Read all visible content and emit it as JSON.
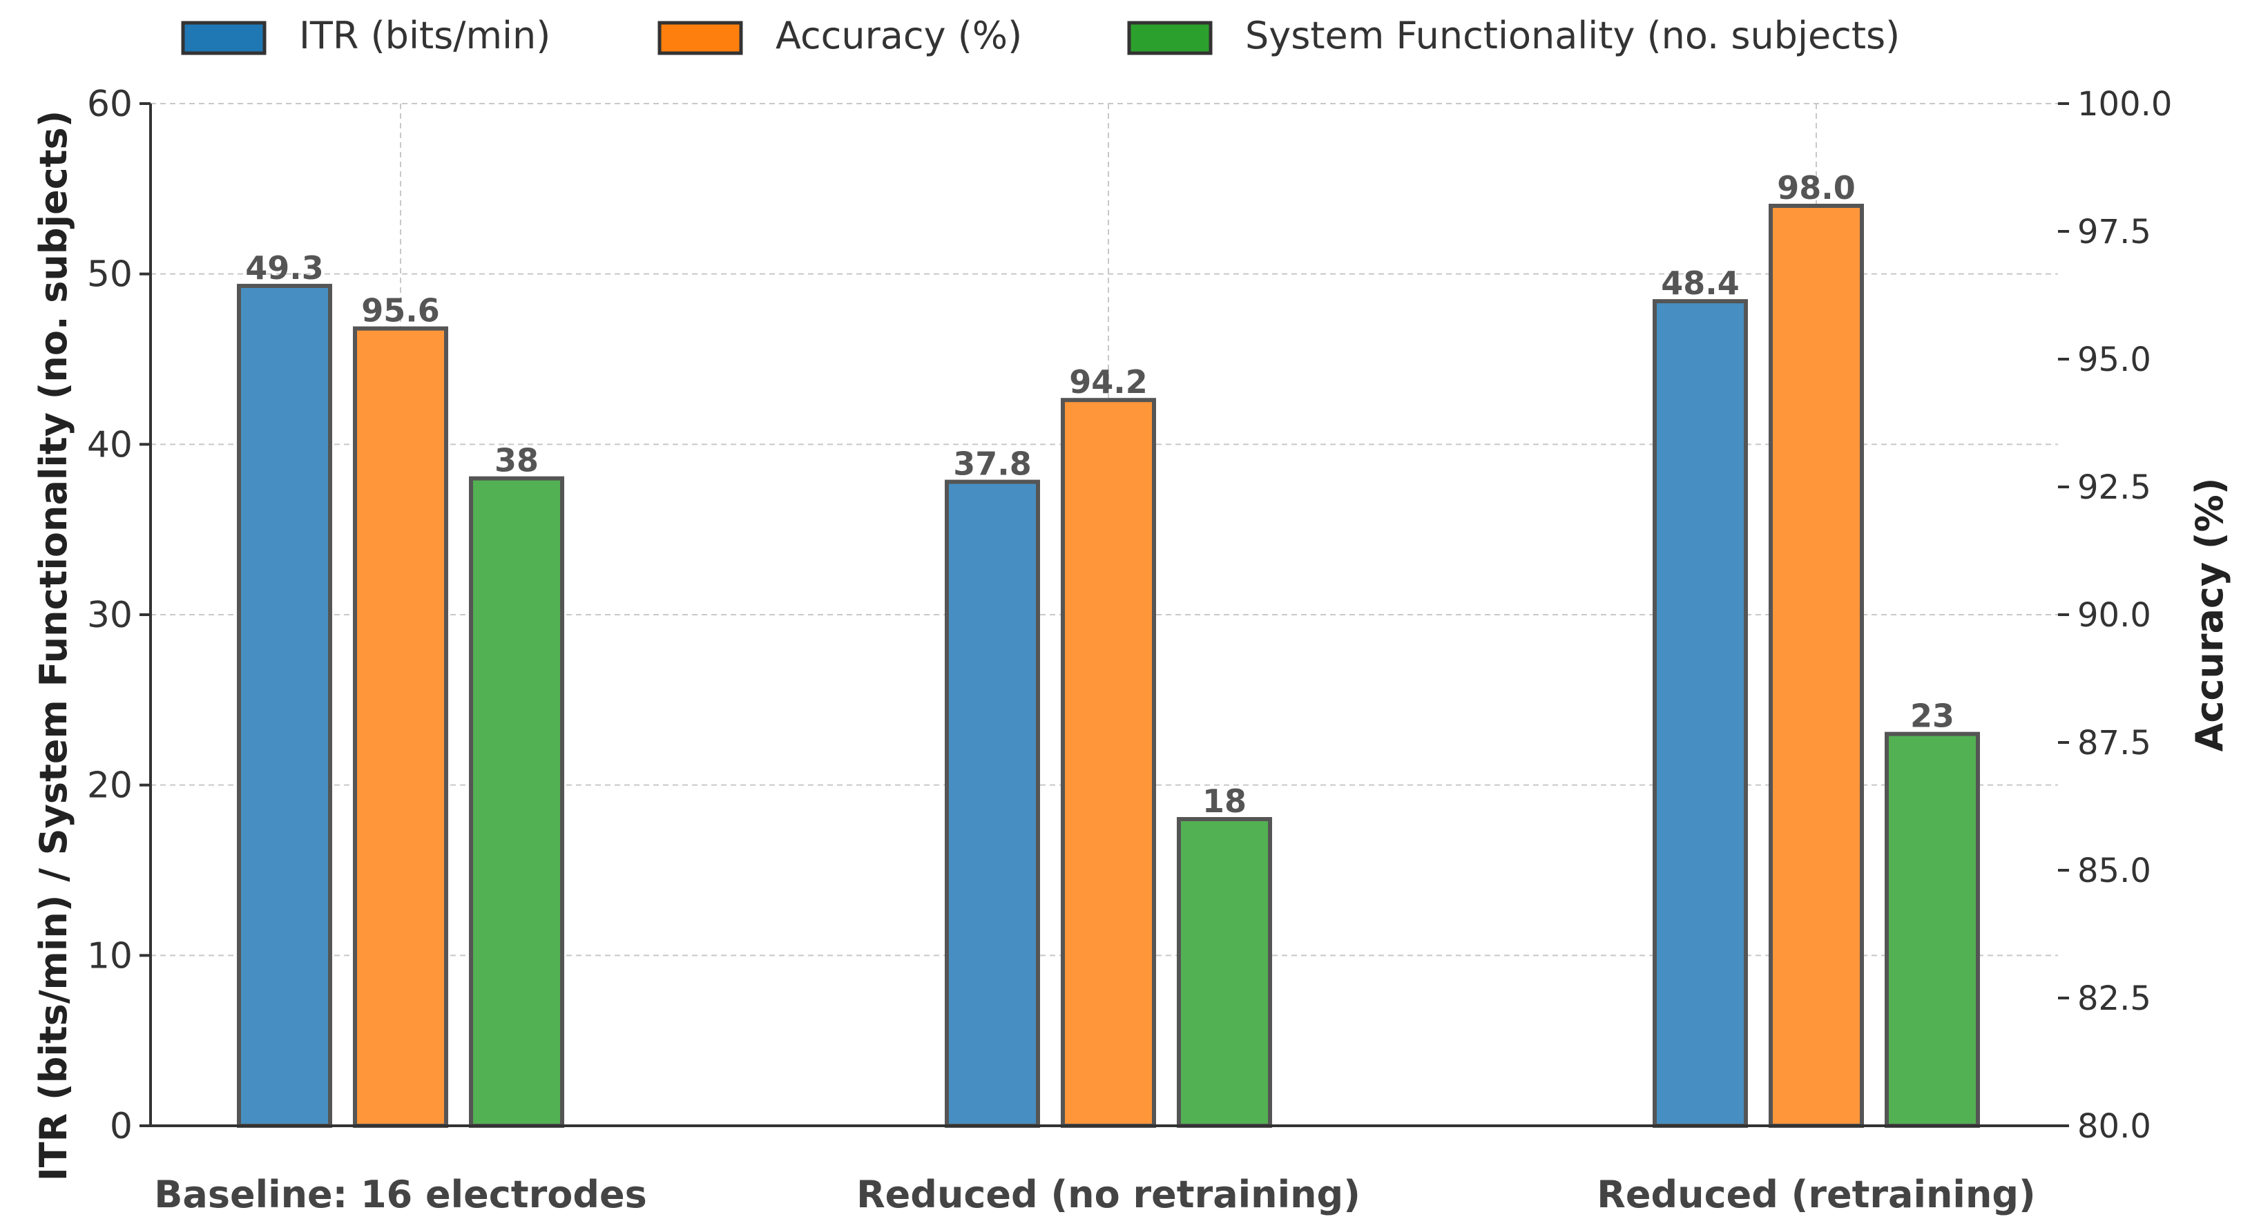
{
  "chart_data": {
    "type": "bar",
    "title": "",
    "categories": [
      "Baseline: 16 electrodes",
      "Reduced (no retraining)",
      "Reduced (retraining)"
    ],
    "series": [
      {
        "name": "ITR (bits/min)",
        "axis": "left",
        "color": "#1f77b4",
        "values": [
          49.3,
          37.8,
          48.4
        ],
        "labels": [
          "49.3",
          "37.8",
          "48.4"
        ]
      },
      {
        "name": "Accuracy (%)",
        "axis": "right",
        "color": "#ff7f0e",
        "values": [
          95.6,
          94.2,
          98.0
        ],
        "labels": [
          "95.6",
          "94.2",
          "98.0"
        ]
      },
      {
        "name": "System Functionality (no. subjects)",
        "axis": "left",
        "color": "#2ca02c",
        "values": [
          38,
          18,
          23
        ],
        "labels": [
          "38",
          "18",
          "23"
        ]
      }
    ],
    "y_left": {
      "label": "ITR (bits/min) / System Functionality (no. subjects)",
      "lim": [
        0,
        60
      ],
      "ticks": [
        0,
        10,
        20,
        30,
        40,
        50,
        60
      ],
      "tick_labels": [
        "0",
        "10",
        "20",
        "30",
        "40",
        "50",
        "60"
      ]
    },
    "y_right": {
      "label": "Accuracy (%)",
      "lim": [
        80,
        100
      ],
      "ticks": [
        80,
        82.5,
        85,
        87.5,
        90,
        92.5,
        95,
        97.5,
        100
      ],
      "tick_labels": [
        "80.0",
        "82.5",
        "85.0",
        "87.5",
        "90.0",
        "92.5",
        "95.0",
        "97.5",
        "100.0"
      ]
    },
    "xlabel": "",
    "grid": true,
    "legend_position": "top"
  }
}
